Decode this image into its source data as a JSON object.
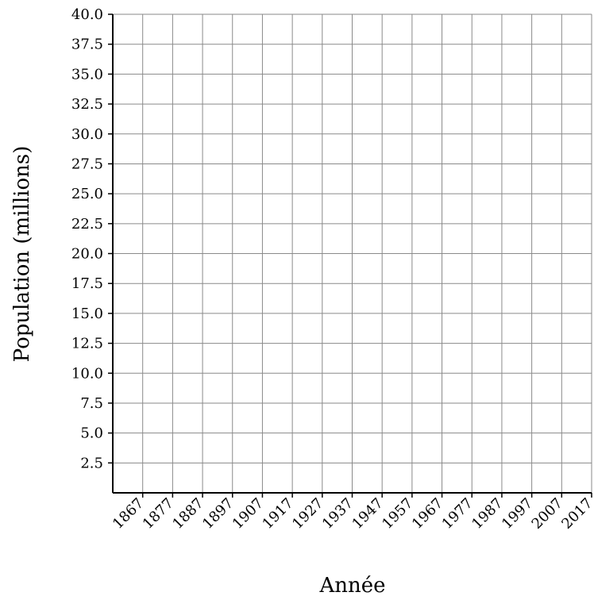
{
  "chart_data": {
    "type": "line",
    "title": "",
    "xlabel": "Année",
    "ylabel": "Population (millions)",
    "x_ticks": [
      "1867",
      "1877",
      "1887",
      "1897",
      "1907",
      "1917",
      "1927",
      "1937",
      "1947",
      "1957",
      "1967",
      "1977",
      "1987",
      "1997",
      "2007",
      "2017"
    ],
    "y_ticks": [
      "2.5",
      "5.0",
      "7.5",
      "10.0",
      "12.5",
      "15.0",
      "17.5",
      "20.0",
      "22.5",
      "25.0",
      "27.5",
      "30.0",
      "32.5",
      "35.0",
      "37.5",
      "40.0"
    ],
    "xlim": [
      1857,
      2017
    ],
    "ylim": [
      0,
      40
    ],
    "grid": true,
    "series": []
  }
}
